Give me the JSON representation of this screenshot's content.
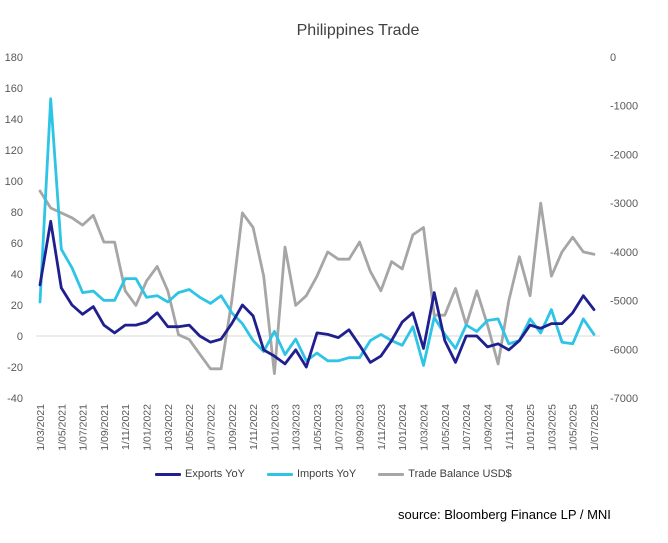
{
  "chart_data": {
    "type": "line",
    "title": "Philippines Trade",
    "categories": [
      "1/03/2021",
      "1/04/2021",
      "1/05/2021",
      "1/06/2021",
      "1/07/2021",
      "1/08/2021",
      "1/09/2021",
      "1/10/2021",
      "1/11/2021",
      "1/12/2021",
      "1/01/2022",
      "1/02/2022",
      "1/03/2022",
      "1/04/2022",
      "1/05/2022",
      "1/06/2022",
      "1/07/2022",
      "1/08/2022",
      "1/09/2022",
      "1/10/2022",
      "1/11/2022",
      "1/12/2022",
      "1/01/2023",
      "1/02/2023",
      "1/03/2023",
      "1/04/2023",
      "1/05/2023",
      "1/06/2023",
      "1/07/2023",
      "1/08/2023",
      "1/09/2023",
      "1/10/2023",
      "1/11/2023",
      "1/12/2023",
      "1/01/2024",
      "1/02/2024",
      "1/03/2024",
      "1/04/2024",
      "1/05/2024",
      "1/06/2024",
      "1/07/2024",
      "1/08/2024",
      "1/09/2024",
      "1/10/2024",
      "1/11/2024",
      "1/12/2024",
      "1/01/2025",
      "1/02/2025",
      "1/03/2025",
      "1/04/2025",
      "1/05/2025",
      "1/06/2025",
      "1/07/2025"
    ],
    "x_tick_labels": [
      "1/03/2021",
      "1/05/2021",
      "1/07/2021",
      "1/09/2021",
      "1/11/2021",
      "1/01/2022",
      "1/03/2022",
      "1/05/2022",
      "1/07/2022",
      "1/09/2022",
      "1/11/2022",
      "1/01/2023",
      "1/03/2023",
      "1/05/2023",
      "1/07/2023",
      "1/09/2023",
      "1/11/2023",
      "1/01/2024",
      "1/03/2024",
      "1/05/2024",
      "1/07/2024",
      "1/09/2024",
      "1/11/2024",
      "1/01/2025",
      "1/03/2025",
      "1/05/2025",
      "1/07/2025"
    ],
    "y_left": {
      "min": -40,
      "max": 180,
      "step": 20,
      "ticks": [
        "180",
        "160",
        "140",
        "120",
        "100",
        "80",
        "60",
        "40",
        "20",
        "0",
        "-20",
        "-40"
      ]
    },
    "y_right": {
      "min": -7000,
      "max": 0,
      "step": 1000,
      "ticks": [
        "0",
        "-1000",
        "-2000",
        "-3000",
        "-4000",
        "-5000",
        "-6000",
        "-7000"
      ]
    },
    "series": [
      {
        "name": "Exports YoY",
        "axis": "left",
        "color": "#1f1f8f",
        "values": [
          33,
          74,
          31,
          20,
          14,
          19,
          7,
          2,
          7,
          7,
          9,
          15,
          6,
          6,
          7,
          0,
          -4,
          -2,
          8,
          20,
          13,
          -9,
          -13,
          -18,
          -9,
          -20,
          2,
          1,
          -1,
          4,
          -6,
          -17,
          -13,
          -3,
          9,
          15,
          -8,
          28,
          -3,
          -17,
          0,
          0,
          -7,
          -5,
          -9,
          -3,
          7,
          5,
          8,
          8,
          15,
          26,
          17
        ]
      },
      {
        "name": "Imports YoY",
        "axis": "left",
        "color": "#2ec4e6",
        "values": [
          22,
          153,
          56,
          44,
          28,
          29,
          23,
          23,
          37,
          37,
          25,
          26,
          22,
          28,
          30,
          25,
          21,
          26,
          15,
          8,
          -3,
          -10,
          3,
          -12,
          -2,
          -16,
          -11,
          -16,
          -16,
          -14,
          -14,
          -3,
          1,
          -3,
          -6,
          6,
          -19,
          12,
          1,
          -8,
          7,
          3,
          10,
          11,
          -5,
          -3,
          11,
          2,
          17,
          -4,
          -5,
          11,
          1
        ]
      },
      {
        "name": "Trade Balance USD$",
        "axis": "right",
        "color": "#a6a6a6",
        "values": [
          -2750,
          -3100,
          -3200,
          -3300,
          -3450,
          -3250,
          -3800,
          -3800,
          -4800,
          -5100,
          -4600,
          -4300,
          -4800,
          -5700,
          -5800,
          -6100,
          -6400,
          -6400,
          -5000,
          -3200,
          -3500,
          -4500,
          -6500,
          -3900,
          -5100,
          -4900,
          -4500,
          -4000,
          -4150,
          -4150,
          -3800,
          -4400,
          -4800,
          -4200,
          -4350,
          -3650,
          -3500,
          -5300,
          -5300,
          -4750,
          -5500,
          -4800,
          -5500,
          -6300,
          -5000,
          -4100,
          -4900,
          -3000,
          -4500,
          -4000,
          -3700,
          -4000,
          -4050
        ]
      }
    ]
  },
  "source": "source: Bloomberg Finance LP / MNI"
}
